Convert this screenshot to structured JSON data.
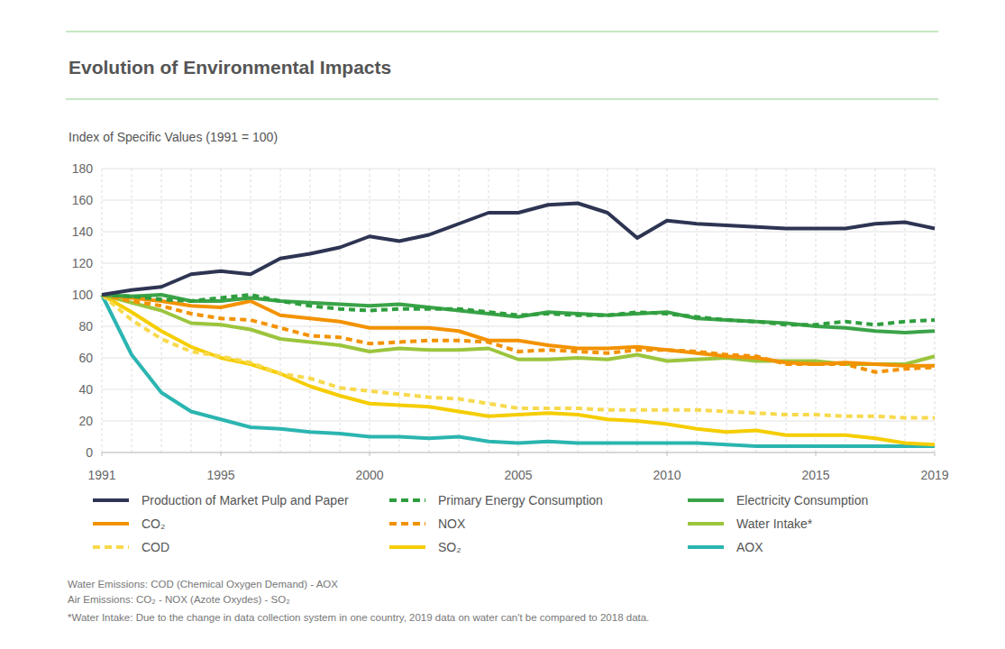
{
  "chart_data": {
    "type": "line",
    "title": "Evolution of Environmental Impacts",
    "subtitle": "Index of Specific Values (1991 = 100)",
    "x": [
      1991,
      1992,
      1993,
      1994,
      1995,
      1996,
      1997,
      1998,
      1999,
      2000,
      2001,
      2002,
      2003,
      2004,
      2005,
      2006,
      2007,
      2008,
      2009,
      2010,
      2011,
      2012,
      2013,
      2014,
      2015,
      2016,
      2017,
      2018,
      2019
    ],
    "xlim": [
      1991,
      2019
    ],
    "xticks": [
      1991,
      1995,
      2000,
      2005,
      2010,
      2015,
      2019
    ],
    "ylim": [
      0,
      180
    ],
    "yticks": [
      0,
      20,
      40,
      60,
      80,
      100,
      120,
      140,
      160,
      180
    ],
    "grid": true,
    "legend": "bottom",
    "series": [
      {
        "name": "Production of Market Pulp and Paper",
        "color": "#2e3553",
        "line_style": "solid",
        "values": [
          100,
          103,
          105,
          113,
          115,
          113,
          123,
          126,
          130,
          137,
          134,
          138,
          145,
          152,
          152,
          157,
          158,
          152,
          136,
          147,
          145,
          144,
          143,
          142,
          142,
          142,
          145,
          146,
          142
        ]
      },
      {
        "name": "Primary Energy Consumption",
        "color": "#2e9e3e",
        "line_style": "dashed",
        "values": [
          100,
          99,
          97,
          96,
          98,
          100,
          96,
          93,
          91,
          90,
          91,
          91,
          91,
          89,
          87,
          88,
          87,
          87,
          89,
          88,
          86,
          84,
          83,
          81,
          81,
          83,
          81,
          83,
          84
        ]
      },
      {
        "name": "Electricity Consumption",
        "color": "#3aa348",
        "line_style": "solid",
        "values": [
          100,
          99,
          100,
          96,
          96,
          98,
          96,
          95,
          94,
          93,
          94,
          92,
          90,
          88,
          86,
          89,
          88,
          87,
          88,
          89,
          85,
          84,
          83,
          82,
          80,
          79,
          77,
          76,
          77
        ]
      },
      {
        "name": "CO₂",
        "color": "#f39200",
        "line_style": "solid",
        "values": [
          100,
          98,
          96,
          93,
          92,
          96,
          87,
          85,
          83,
          79,
          79,
          79,
          77,
          71,
          71,
          68,
          66,
          66,
          67,
          65,
          63,
          61,
          60,
          57,
          56,
          57,
          56,
          55,
          55
        ]
      },
      {
        "name": "NOX",
        "color": "#f39200",
        "line_style": "dashed",
        "values": [
          100,
          96,
          93,
          88,
          85,
          84,
          79,
          74,
          73,
          69,
          70,
          71,
          71,
          70,
          64,
          65,
          64,
          63,
          65,
          65,
          64,
          62,
          61,
          56,
          56,
          56,
          51,
          53,
          54
        ]
      },
      {
        "name": "Water Intake*",
        "color": "#9bc53d",
        "line_style": "solid",
        "values": [
          100,
          95,
          90,
          82,
          81,
          78,
          72,
          70,
          68,
          64,
          66,
          65,
          65,
          66,
          59,
          59,
          60,
          59,
          62,
          58,
          59,
          60,
          58,
          58,
          58,
          56,
          56,
          56,
          61
        ]
      },
      {
        "name": "COD",
        "color": "#f7d94c",
        "line_style": "dashed",
        "values": [
          100,
          84,
          72,
          64,
          61,
          57,
          50,
          47,
          41,
          39,
          37,
          35,
          34,
          31,
          28,
          28,
          28,
          27,
          27,
          27,
          27,
          26,
          25,
          24,
          24,
          23,
          23,
          22,
          22
        ]
      },
      {
        "name": "SO₂",
        "color": "#f5cd00",
        "line_style": "solid",
        "values": [
          100,
          89,
          77,
          67,
          60,
          56,
          50,
          42,
          36,
          31,
          30,
          29,
          26,
          23,
          24,
          25,
          24,
          21,
          20,
          18,
          15,
          13,
          14,
          11,
          11,
          11,
          9,
          6,
          5
        ]
      },
      {
        "name": "AOX",
        "color": "#2bb5b0",
        "line_style": "solid",
        "values": [
          100,
          62,
          38,
          26,
          21,
          16,
          15,
          13,
          12,
          10,
          10,
          9,
          10,
          7,
          6,
          7,
          6,
          6,
          6,
          6,
          6,
          5,
          4,
          4,
          4,
          4,
          4,
          4,
          4
        ]
      }
    ],
    "annotations": [
      "Water Emissions: COD (Chemical Oxygen Demand) - AOX",
      "Air Emissions: CO₂ - NOX (Azote Oxydes) - SO₂",
      "*Water Intake: Due to the change in data collection system in one country, 2019 data on water can't be compared to 2018 data."
    ]
  }
}
